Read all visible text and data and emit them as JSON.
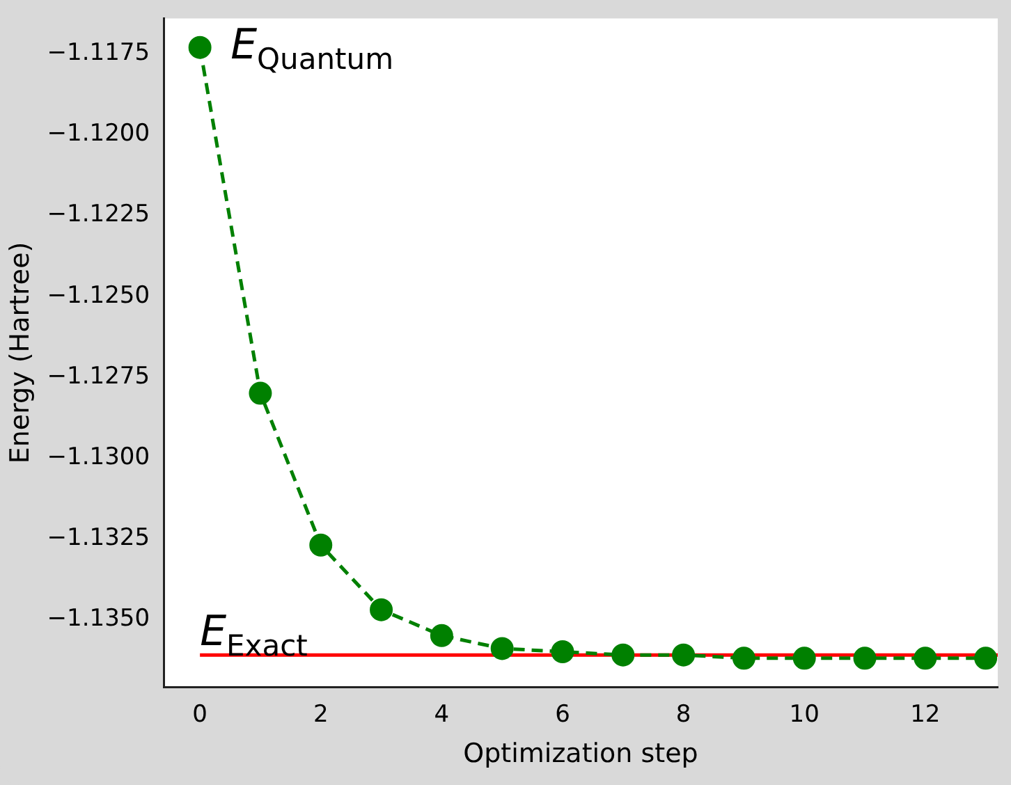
{
  "chart_data": {
    "type": "line",
    "xlabel": "Optimization step",
    "ylabel": "Energy (Hartree)",
    "xlim": [
      -0.6,
      13.2
    ],
    "xticks": [
      0,
      2,
      4,
      6,
      8,
      10,
      12
    ],
    "ylim": [
      -1.1371,
      -1.1164
    ],
    "yticks": [
      {
        "value": -1.1175,
        "label": "−1.1175"
      },
      {
        "value": -1.12,
        "label": "−1.1200"
      },
      {
        "value": -1.1225,
        "label": "−1.1225"
      },
      {
        "value": -1.125,
        "label": "−1.1250"
      },
      {
        "value": -1.1275,
        "label": "−1.1275"
      },
      {
        "value": -1.13,
        "label": "−1.1300"
      },
      {
        "value": -1.1325,
        "label": "−1.1325"
      },
      {
        "value": -1.135,
        "label": "−1.1350"
      }
    ],
    "grid": false,
    "legend": false,
    "series": [
      {
        "color": "#008000",
        "marker": "circle",
        "line_style": "dashed",
        "x": [
          0,
          1,
          2,
          3,
          4,
          5,
          6,
          7,
          8,
          9,
          10,
          11,
          12,
          13
        ],
        "values": [
          -1.1173,
          -1.128,
          -1.1327,
          -1.1347,
          -1.1355,
          -1.1359,
          -1.136,
          -1.1361,
          -1.1361,
          -1.1362,
          -1.1362,
          -1.1362,
          -1.1362,
          -1.1362
        ]
      },
      {
        "color": "#ff0000",
        "marker": "none",
        "line_style": "solid",
        "x": [
          0,
          13.2
        ],
        "values": [
          -1.1361,
          -1.1361
        ]
      }
    ],
    "annotations": [
      "E$_{Quantum}$",
      "E$_{Exact}$"
    ]
  }
}
